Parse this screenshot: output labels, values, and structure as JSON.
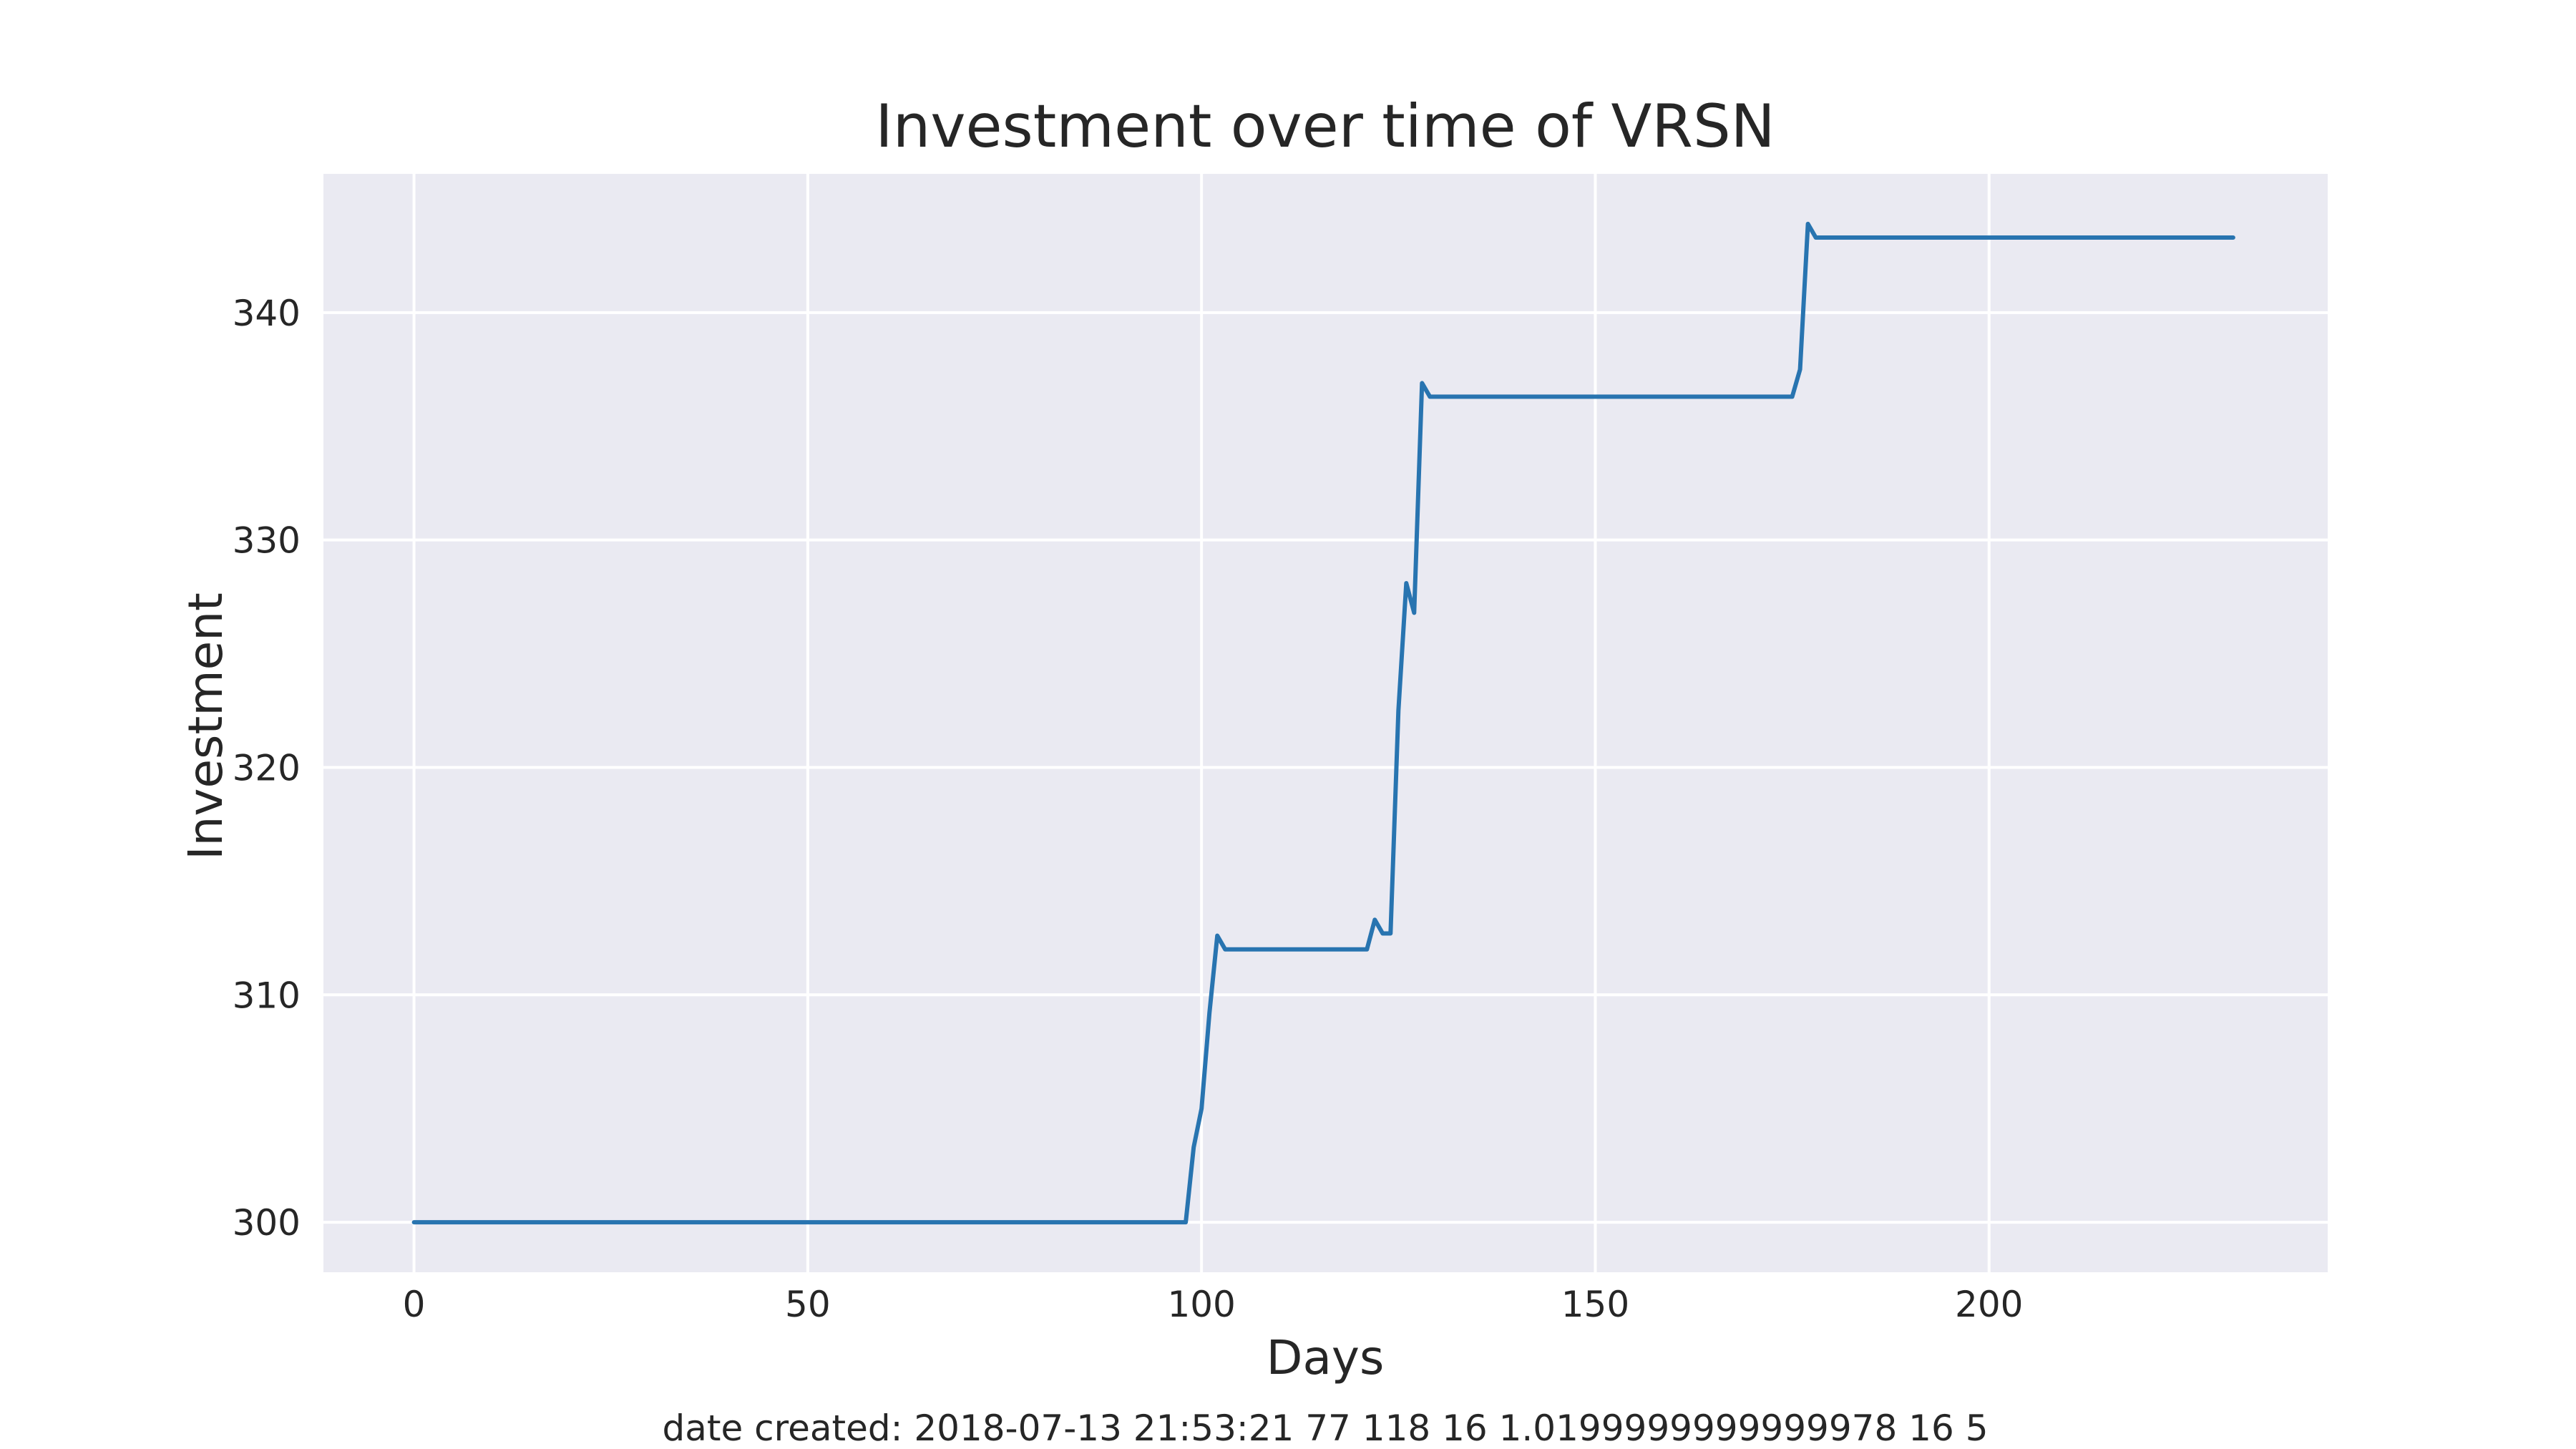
{
  "chart_data": {
    "type": "line",
    "title": "Investment over time of VRSN",
    "xlabel": "Days",
    "ylabel": "Investment",
    "xlim": [
      -11.5,
      243
    ],
    "ylim": [
      297.8,
      346.1
    ],
    "x_ticks": [
      0,
      50,
      100,
      150,
      200
    ],
    "y_ticks": [
      300,
      310,
      320,
      330,
      340
    ],
    "grid": true,
    "colors": {
      "background": "#eaeaf2",
      "grid": "#ffffff",
      "line": "#2874b0",
      "text": "#262626"
    },
    "series": [
      {
        "points": [
          [
            0,
            300
          ],
          [
            98,
            300
          ],
          [
            99,
            303.3
          ],
          [
            100,
            305
          ],
          [
            101,
            309.2
          ],
          [
            102,
            312.6
          ],
          [
            103,
            312
          ],
          [
            110,
            312
          ],
          [
            121,
            312
          ],
          [
            122,
            313.3
          ],
          [
            123,
            312.7
          ],
          [
            124,
            312.7
          ],
          [
            125,
            322.5
          ],
          [
            126,
            328.1
          ],
          [
            127,
            326.8
          ],
          [
            128,
            336.9
          ],
          [
            129,
            336.3
          ],
          [
            150,
            336.3
          ],
          [
            175,
            336.3
          ],
          [
            176,
            337.5
          ],
          [
            177,
            343.9
          ],
          [
            178,
            343.3
          ],
          [
            200,
            343.3
          ],
          [
            231,
            343.3
          ]
        ]
      }
    ],
    "footer": "date created: 2018-07-13 21:53:21 77 118 16 1.0199999999999978 16 5"
  }
}
